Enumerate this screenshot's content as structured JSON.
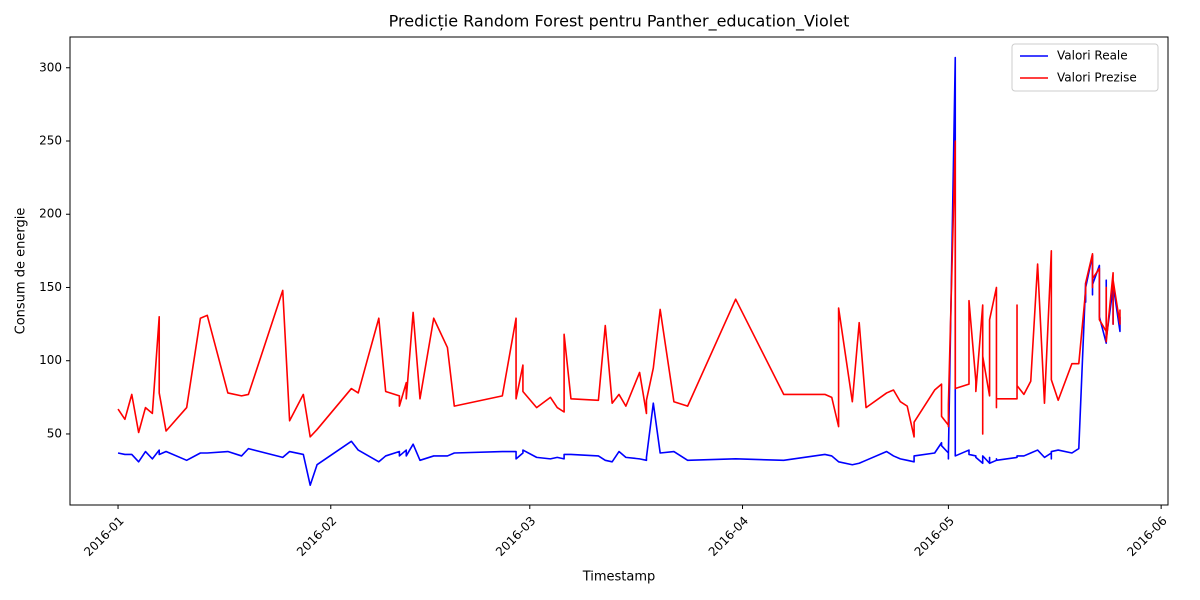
{
  "chart_data": {
    "type": "line",
    "title": "Predicție Random Forest pentru Panther_education_Violet",
    "xlabel": "Timestamp",
    "ylabel": "Consum de energie",
    "x": [
      "2016-01-01",
      "2016-01-02",
      "2016-01-03",
      "2016-01-04",
      "2016-01-05",
      "2016-01-06",
      "2016-01-07",
      "2016-01-07",
      "2016-01-08",
      "2016-01-11",
      "2016-01-13",
      "2016-01-14",
      "2016-01-17",
      "2016-01-19",
      "2016-01-20",
      "2016-01-25",
      "2016-01-26",
      "2016-01-28",
      "2016-01-29",
      "2016-01-30",
      "2016-02-04",
      "2016-02-05",
      "2016-02-08",
      "2016-02-09",
      "2016-02-11",
      "2016-02-11",
      "2016-02-12",
      "2016-02-12",
      "2016-02-13",
      "2016-02-14",
      "2016-02-16",
      "2016-02-18",
      "2016-02-19",
      "2016-02-26",
      "2016-02-28",
      "2016-02-28",
      "2016-02-29",
      "2016-02-29",
      "2016-03-02",
      "2016-03-04",
      "2016-03-05",
      "2016-03-06",
      "2016-03-06",
      "2016-03-07",
      "2016-03-11",
      "2016-03-12",
      "2016-03-13",
      "2016-03-14",
      "2016-03-15",
      "2016-03-17",
      "2016-03-18",
      "2016-03-18",
      "2016-03-19",
      "2016-03-20",
      "2016-03-22",
      "2016-03-24",
      "2016-03-31",
      "2016-04-07",
      "2016-04-13",
      "2016-04-14",
      "2016-04-15",
      "2016-04-15",
      "2016-04-17",
      "2016-04-18",
      "2016-04-19",
      "2016-04-22",
      "2016-04-23",
      "2016-04-24",
      "2016-04-25",
      "2016-04-26",
      "2016-04-26",
      "2016-04-29",
      "2016-04-30",
      "2016-04-30",
      "2016-05-01",
      "2016-05-01",
      "2016-05-01",
      "2016-05-02",
      "2016-05-02",
      "2016-05-04",
      "2016-05-04",
      "2016-05-05",
      "2016-05-05",
      "2016-05-06",
      "2016-05-06",
      "2016-05-06",
      "2016-05-07",
      "2016-05-07",
      "2016-05-07",
      "2016-05-08",
      "2016-05-08",
      "2016-05-08",
      "2016-05-11",
      "2016-05-11",
      "2016-05-11",
      "2016-05-12",
      "2016-05-13",
      "2016-05-14",
      "2016-05-15",
      "2016-05-16",
      "2016-05-16",
      "2016-05-16",
      "2016-05-17",
      "2016-05-19",
      "2016-05-20",
      "2016-05-21",
      "2016-05-21",
      "2016-05-21",
      "2016-05-22",
      "2016-05-22",
      "2016-05-22",
      "2016-05-23",
      "2016-05-23",
      "2016-05-23",
      "2016-05-23",
      "2016-05-24",
      "2016-05-24",
      "2016-05-24",
      "2016-05-25",
      "2016-05-25",
      "2016-05-25",
      "2016-05-25",
      "2016-05-26",
      "2016-05-26"
    ],
    "series": [
      {
        "name": "Valori Reale",
        "color": "#0000ff",
        "values": [
          37,
          36,
          36,
          31,
          38,
          33,
          39,
          36,
          38,
          32,
          37,
          37,
          38,
          35,
          40,
          34,
          38,
          36,
          15,
          29,
          45,
          39,
          31,
          35,
          38,
          35,
          39,
          35,
          43,
          32,
          35,
          35,
          37,
          38,
          38,
          33,
          37,
          39,
          34,
          33,
          34,
          33,
          36,
          36,
          35,
          32,
          31,
          38,
          34,
          33,
          32,
          34,
          71,
          37,
          38,
          32,
          33,
          32,
          36,
          35,
          31,
          31,
          29,
          30,
          32,
          38,
          35,
          33,
          32,
          31,
          35,
          37,
          44,
          42,
          37,
          33,
          36,
          307,
          35,
          39,
          36,
          35,
          34,
          30,
          30,
          35,
          30,
          34,
          30,
          32,
          33,
          32,
          34,
          35,
          35,
          35,
          37,
          39,
          34,
          37,
          33,
          38,
          39,
          37,
          40,
          153,
          140,
          150,
          172,
          145,
          152,
          165,
          140,
          155,
          130,
          112,
          155,
          115,
          150,
          125,
          130,
          152,
          120,
          130
        ]
      },
      {
        "name": "Valori Prezise",
        "color": "#ff0000",
        "values": [
          67,
          60,
          77,
          51,
          68,
          64,
          130,
          78,
          52,
          68,
          129,
          131,
          78,
          76,
          77,
          148,
          59,
          77,
          48,
          53,
          81,
          78,
          129,
          79,
          76,
          69,
          85,
          74,
          133,
          74,
          129,
          109,
          69,
          76,
          129,
          74,
          97,
          79,
          68,
          75,
          68,
          65,
          118,
          74,
          73,
          124,
          71,
          77,
          69,
          92,
          64,
          73,
          95,
          135,
          72,
          69,
          142,
          77,
          77,
          75,
          55,
          136,
          72,
          126,
          68,
          78,
          80,
          72,
          69,
          48,
          58,
          80,
          84,
          62,
          56,
          55,
          70,
          250,
          81,
          84,
          141,
          86,
          79,
          138,
          50,
          103,
          76,
          102,
          128,
          150,
          68,
          74,
          74,
          138,
          83,
          77,
          86,
          166,
          71,
          175,
          110,
          87,
          73,
          98,
          98,
          148,
          146,
          153,
          173,
          150,
          156,
          163,
          145,
          156,
          128,
          120,
          150,
          113,
          160,
          125,
          131,
          155,
          125,
          135
        ]
      }
    ],
    "xlim": [
      "2015-12-25",
      "2016-06-02"
    ],
    "xticks": [
      {
        "value": "2016-01-01",
        "label": "2016-01"
      },
      {
        "value": "2016-02-01",
        "label": "2016-02"
      },
      {
        "value": "2016-03-01",
        "label": "2016-03"
      },
      {
        "value": "2016-04-01",
        "label": "2016-04"
      },
      {
        "value": "2016-05-01",
        "label": "2016-05"
      },
      {
        "value": "2016-06-01",
        "label": "2016-06"
      }
    ],
    "ylim": [
      1.5,
      321
    ],
    "yticks": [
      50,
      100,
      150,
      200,
      250,
      300
    ],
    "grid": false,
    "legend": "upper right"
  }
}
